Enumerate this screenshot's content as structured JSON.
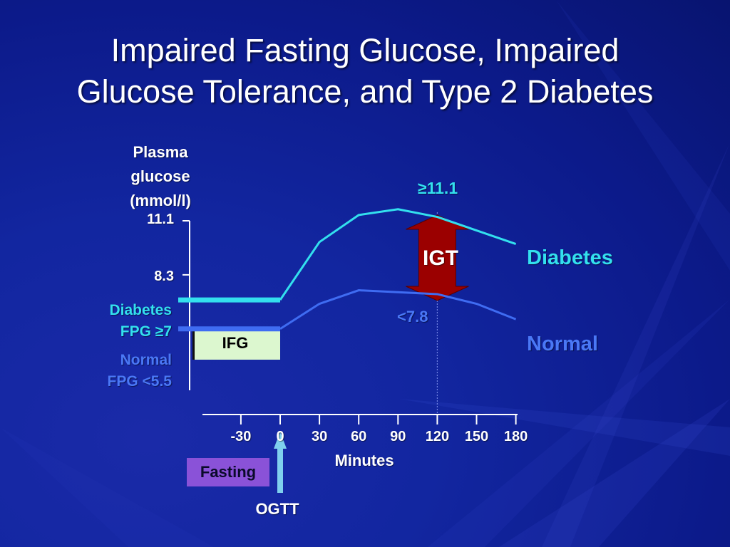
{
  "title_lines": [
    "Impaired Fasting Glucose, Impaired",
    "Glucose Tolerance, and Type 2 Diabetes"
  ],
  "colors": {
    "background": "#1226a0",
    "diabetes": "#33e0ee",
    "normal": "#3f6cf2",
    "igt_arrow": "#9b0000",
    "ifg_box": "#dcf7cf",
    "fasting_box": "#8a52d8",
    "ogtt_arrow": "#7fd0ee"
  },
  "chart_data": {
    "type": "line",
    "ylabel_lines": [
      "Plasma",
      "glucose",
      "(mmol/l)"
    ],
    "xlabel": "Minutes",
    "x_ticks": [
      -30,
      0,
      30,
      60,
      90,
      120,
      150,
      180
    ],
    "x_tick_labels": [
      "-30",
      "0",
      "30",
      "60",
      "90",
      "120",
      "150",
      "180"
    ],
    "y_ticks": [
      {
        "value": 11.1,
        "label": "11.1"
      },
      {
        "value": 8.3,
        "label": "8.3"
      }
    ],
    "series": [
      {
        "name": "Diabetes",
        "x": [
          0,
          30,
          60,
          90,
          120,
          150,
          180
        ],
        "y": [
          7.0,
          10.0,
          11.4,
          11.7,
          11.3,
          10.6,
          9.9
        ]
      },
      {
        "name": "Normal",
        "x": [
          0,
          30,
          60,
          90,
          120,
          150,
          180
        ],
        "y": [
          5.5,
          6.8,
          7.5,
          7.4,
          7.3,
          6.8,
          6.0
        ]
      }
    ],
    "fasting_levels": [
      {
        "name": "Diabetes",
        "label_lines": [
          "Diabetes",
          "FPG ≥7"
        ],
        "value": 7.0
      },
      {
        "name": "Normal",
        "label_lines": [
          "Normal",
          "FPG <5.5"
        ],
        "value": 5.5
      }
    ],
    "annotations": {
      "ifg": "IFG",
      "igt": "IGT",
      "igt_upper": "≥11.1",
      "igt_lower": "<7.8",
      "igt_x": 120,
      "fasting": "Fasting",
      "ogtt": "OGTT"
    }
  }
}
